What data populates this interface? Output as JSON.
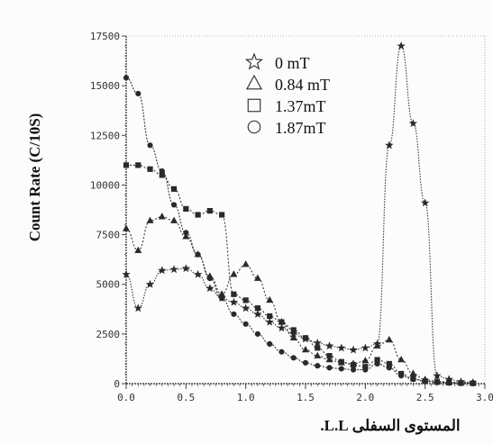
{
  "chart_data": {
    "type": "line",
    "title": "",
    "ylabel": "Count Rate (C/10S)",
    "xlabel": "المستوى السفلى L.L.",
    "xlim": [
      0,
      3
    ],
    "ylim": [
      0,
      17500
    ],
    "y_ticks": [
      "0",
      "2500",
      "5000",
      "7500",
      "10000",
      "12500",
      "15000",
      "17500"
    ],
    "x_ticks": [
      "0.0",
      "0.5",
      "1.0",
      "1.5",
      "2.0",
      "2.5",
      "3.0"
    ],
    "grid": false,
    "legend_position": "top-center",
    "x": [
      0.0,
      0.1,
      0.2,
      0.3,
      0.4,
      0.5,
      0.6,
      0.7,
      0.8,
      0.9,
      1.0,
      1.1,
      1.2,
      1.3,
      1.4,
      1.5,
      1.6,
      1.7,
      1.8,
      1.9,
      2.0,
      2.1,
      2.2,
      2.3,
      2.4,
      2.5,
      2.6,
      2.7,
      2.8,
      2.9
    ],
    "series": [
      {
        "name": "0 mT",
        "marker": "star",
        "values": [
          5500,
          3800,
          5000,
          5700,
          5750,
          5800,
          5500,
          4800,
          4300,
          4100,
          3800,
          3500,
          3100,
          2800,
          2500,
          2250,
          2050,
          1900,
          1800,
          1700,
          1800,
          2000,
          12000,
          17000,
          13100,
          9100,
          400,
          220,
          100,
          50
        ]
      },
      {
        "name": "0.84 mT",
        "marker": "triangle",
        "values": [
          7800,
          6700,
          8200,
          8400,
          8200,
          7400,
          6500,
          5400,
          4500,
          5500,
          6000,
          5300,
          4200,
          3100,
          2300,
          1700,
          1400,
          1200,
          1050,
          1000,
          1150,
          1900,
          2200,
          1200,
          500,
          200,
          120,
          80,
          50,
          30
        ]
      },
      {
        "name": "1.37mT",
        "marker": "square",
        "values": [
          11000,
          11000,
          10800,
          10500,
          9800,
          8800,
          8500,
          8700,
          8500,
          4500,
          4200,
          3800,
          3400,
          3100,
          2700,
          2300,
          1800,
          1400,
          1100,
          950,
          850,
          1200,
          1000,
          500,
          250,
          130,
          80,
          50,
          30,
          20
        ]
      },
      {
        "name": "1.87mT",
        "marker": "circle",
        "values": [
          15400,
          14600,
          12000,
          10700,
          9000,
          7600,
          6500,
          5300,
          4300,
          3500,
          3000,
          2500,
          2000,
          1600,
          1300,
          1050,
          900,
          800,
          750,
          700,
          700,
          1000,
          800,
          400,
          220,
          120,
          70,
          40,
          20,
          10
        ]
      }
    ]
  },
  "colors": {
    "line": "#3a3a3a",
    "marker": "#2a2a2a",
    "axis": "#444444",
    "background": "#fcfcfc"
  }
}
